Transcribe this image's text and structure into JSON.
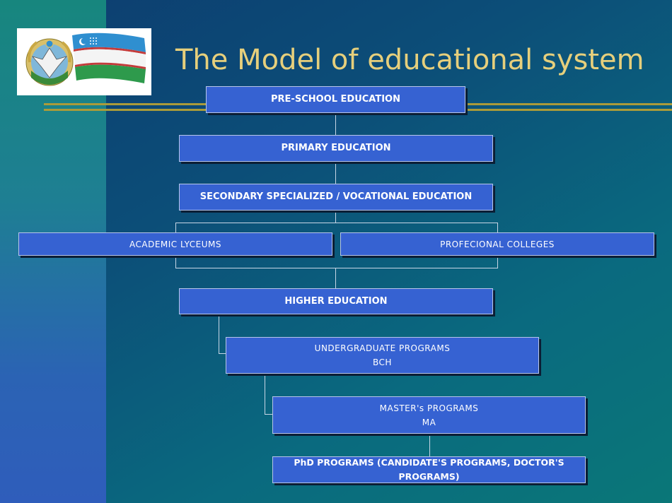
{
  "slide": {
    "title": "The Model of educational system",
    "colors": {
      "title": "#e6cf7c",
      "box_fill": "#3662d2",
      "rule": "#aa9b3a",
      "background": "#0c4e78"
    }
  },
  "emblem": {
    "icons": [
      "coat-of-arms-icon",
      "flag-of-uzbekistan-icon"
    ]
  },
  "diagram": {
    "preschool": "PRE-SCHOOL  EDUCATION",
    "primary": "PRIMARY EDUCATION",
    "secondary": "SECONDARY  SPECIALIZED / VOCATIONAL  EDUCATION",
    "lyceums": "ACADEMIC  LYCEUMS",
    "colleges": "PROFECIONAL COLLEGES",
    "higher": "HIGHER EDUCATION",
    "undergraduate_line1": "UNDERGRADUATE  PROGRAMS",
    "undergraduate_line2": "BCH",
    "masters_line1": "MASTER's PROGRAMS",
    "masters_line2": "MA",
    "phd": "PhD PROGRAMS (CANDIDATE'S PROGRAMS, DOCTOR'S PROGRAMS)"
  }
}
